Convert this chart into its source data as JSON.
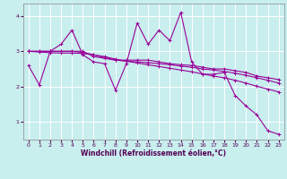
{
  "title": "",
  "xlabel": "Windchill (Refroidissement éolien,°C)",
  "ylabel": "",
  "bg_color": "#c8eeee",
  "grid_color": "#ffffff",
  "line_color": "#990099",
  "xlim": [
    -0.5,
    23.5
  ],
  "ylim": [
    0.5,
    4.35
  ],
  "xticks": [
    0,
    1,
    2,
    3,
    4,
    5,
    6,
    7,
    8,
    9,
    10,
    11,
    12,
    13,
    14,
    15,
    16,
    17,
    18,
    19,
    20,
    21,
    22,
    23
  ],
  "yticks": [
    1,
    2,
    3,
    4
  ],
  "series": [
    {
      "x": [
        0,
        1,
        2,
        3,
        4,
        5,
        6,
        7,
        8,
        9,
        10,
        11,
        12,
        13,
        14,
        15,
        16,
        17,
        18,
        19,
        20,
        21,
        22,
        23
      ],
      "y": [
        2.6,
        2.05,
        3.0,
        3.2,
        3.6,
        2.9,
        2.7,
        2.65,
        1.9,
        2.65,
        3.8,
        3.2,
        3.6,
        3.3,
        4.1,
        2.7,
        2.35,
        2.35,
        2.4,
        1.75,
        1.45,
        1.2,
        0.75,
        0.65
      ]
    },
    {
      "x": [
        0,
        1,
        2,
        3,
        4,
        5,
        6,
        7,
        8,
        9,
        10,
        11,
        12,
        13,
        14,
        15,
        16,
        17,
        18,
        19,
        20,
        21,
        22,
        23
      ],
      "y": [
        3.0,
        3.0,
        3.0,
        3.0,
        3.0,
        3.0,
        2.85,
        2.8,
        2.75,
        2.75,
        2.75,
        2.75,
        2.7,
        2.65,
        2.62,
        2.6,
        2.55,
        2.5,
        2.5,
        2.45,
        2.4,
        2.3,
        2.25,
        2.2
      ]
    },
    {
      "x": [
        0,
        1,
        2,
        3,
        4,
        5,
        6,
        7,
        8,
        9,
        10,
        11,
        12,
        13,
        14,
        15,
        16,
        17,
        18,
        19,
        20,
        21,
        22,
        23
      ],
      "y": [
        3.0,
        3.0,
        3.0,
        3.0,
        3.0,
        2.97,
        2.9,
        2.82,
        2.75,
        2.72,
        2.7,
        2.68,
        2.65,
        2.62,
        2.58,
        2.55,
        2.5,
        2.47,
        2.43,
        2.38,
        2.32,
        2.25,
        2.18,
        2.1
      ]
    },
    {
      "x": [
        0,
        1,
        2,
        3,
        4,
        5,
        6,
        7,
        8,
        9,
        10,
        11,
        12,
        13,
        14,
        15,
        16,
        17,
        18,
        19,
        20,
        21,
        22,
        23
      ],
      "y": [
        3.0,
        2.98,
        2.96,
        2.95,
        2.95,
        2.94,
        2.9,
        2.85,
        2.78,
        2.72,
        2.67,
        2.62,
        2.57,
        2.52,
        2.47,
        2.42,
        2.36,
        2.3,
        2.25,
        2.18,
        2.1,
        2.01,
        1.93,
        1.85
      ]
    }
  ]
}
